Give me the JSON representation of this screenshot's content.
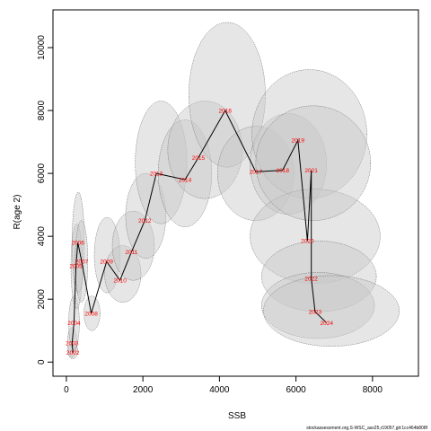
{
  "chart_data": {
    "type": "scatter",
    "xlabel": "SSB",
    "ylabel": "R(age 2)",
    "xlim": [
      -350,
      9200
    ],
    "ylim": [
      -450,
      11200
    ],
    "xticks": [
      0,
      2000,
      4000,
      6000,
      8000
    ],
    "yticks": [
      0,
      2000,
      4000,
      6000,
      8000,
      10000
    ],
    "grid": false,
    "line_color": "#000000",
    "label_color": "#ff0000",
    "ellipse_fill": "#c8c8c8",
    "ellipse_stroke": "#666666",
    "points": [
      {
        "year": "2002",
        "ssb": 170,
        "r": 300,
        "ssb_lo": 40,
        "ssb_hi": 300,
        "r_lo": 100,
        "r_hi": 600
      },
      {
        "year": "2003",
        "ssb": 150,
        "r": 600,
        "ssb_lo": 30,
        "ssb_hi": 270,
        "r_lo": 150,
        "r_hi": 1100
      },
      {
        "year": "2004",
        "ssb": 200,
        "r": 1250,
        "ssb_lo": 60,
        "ssb_hi": 340,
        "r_lo": 400,
        "r_hi": 2100
      },
      {
        "year": "2005",
        "ssb": 250,
        "r": 3050,
        "ssb_lo": 120,
        "ssb_hi": 420,
        "r_lo": 1700,
        "r_hi": 4400
      },
      {
        "year": "2006",
        "ssb": 300,
        "r": 3800,
        "ssb_lo": 150,
        "ssb_hi": 470,
        "r_lo": 2200,
        "r_hi": 5400
      },
      {
        "year": "2007",
        "ssb": 400,
        "r": 3200,
        "ssb_lo": 230,
        "ssb_hi": 560,
        "r_lo": 1900,
        "r_hi": 4500
      },
      {
        "year": "2008",
        "ssb": 650,
        "r": 1550,
        "ssb_lo": 460,
        "ssb_hi": 880,
        "r_lo": 1000,
        "r_hi": 2100
      },
      {
        "year": "2009",
        "ssb": 1050,
        "r": 3200,
        "ssb_lo": 730,
        "ssb_hi": 1400,
        "r_lo": 2200,
        "r_hi": 4600
      },
      {
        "year": "2010",
        "ssb": 1400,
        "r": 2600,
        "ssb_lo": 1000,
        "ssb_hi": 1950,
        "r_lo": 1900,
        "r_hi": 3700
      },
      {
        "year": "2011",
        "ssb": 1700,
        "r": 3500,
        "ssb_lo": 1200,
        "ssb_hi": 2300,
        "r_lo": 2600,
        "r_hi": 4800
      },
      {
        "year": "2012",
        "ssb": 2050,
        "r": 4500,
        "ssb_lo": 1550,
        "ssb_hi": 2600,
        "r_lo": 3300,
        "r_hi": 6000
      },
      {
        "year": "2013",
        "ssb": 2350,
        "r": 6000,
        "ssb_lo": 1800,
        "ssb_hi": 3150,
        "r_lo": 4400,
        "r_hi": 8300
      },
      {
        "year": "2014",
        "ssb": 3100,
        "r": 5800,
        "ssb_lo": 2400,
        "ssb_hi": 3800,
        "r_lo": 4300,
        "r_hi": 7700
      },
      {
        "year": "2015",
        "ssb": 3450,
        "r": 6500,
        "ssb_lo": 2650,
        "ssb_hi": 4600,
        "r_lo": 5200,
        "r_hi": 8300
      },
      {
        "year": "2016",
        "ssb": 4150,
        "r": 8000,
        "ssb_lo": 3200,
        "ssb_hi": 5200,
        "r_lo": 6200,
        "r_hi": 10800
      },
      {
        "year": "2017",
        "ssb": 4950,
        "r": 6050,
        "ssb_lo": 3950,
        "ssb_hi": 5950,
        "r_lo": 4500,
        "r_hi": 7500
      },
      {
        "year": "2018",
        "ssb": 5650,
        "r": 6100,
        "ssb_lo": 4800,
        "ssb_hi": 6800,
        "r_lo": 4700,
        "r_hi": 7900
      },
      {
        "year": "2019",
        "ssb": 6050,
        "r": 7050,
        "ssb_lo": 4850,
        "ssb_hi": 7850,
        "r_lo": 5200,
        "r_hi": 9300
      },
      {
        "year": "2020",
        "ssb": 6300,
        "r": 3850,
        "ssb_lo": 4800,
        "ssb_hi": 8200,
        "r_lo": 2500,
        "r_hi": 5500
      },
      {
        "year": "2021",
        "ssb": 6400,
        "r": 6100,
        "ssb_lo": 4950,
        "ssb_hi": 7950,
        "r_lo": 4500,
        "r_hi": 8150
      },
      {
        "year": "2022",
        "ssb": 6400,
        "r": 2650,
        "ssb_lo": 5100,
        "ssb_hi": 8100,
        "r_lo": 1600,
        "r_hi": 3850
      },
      {
        "year": "2023",
        "ssb": 6500,
        "r": 1600,
        "ssb_lo": 5100,
        "ssb_hi": 8050,
        "r_lo": 750,
        "r_hi": 2850
      },
      {
        "year": "2024",
        "ssb": 6800,
        "r": 1250,
        "ssb_lo": 5150,
        "ssb_hi": 8700,
        "r_lo": 500,
        "r_hi": 2750
      }
    ]
  },
  "credit": "stockassessment.org,S-WSC_ass25,r19057,git:1cc464b808f"
}
